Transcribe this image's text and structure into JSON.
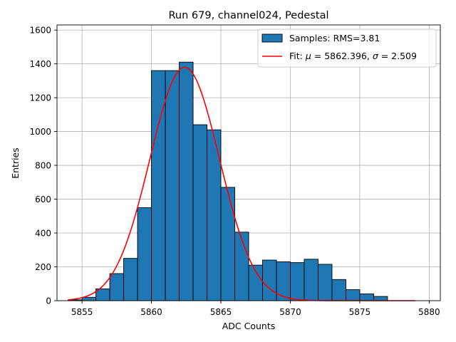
{
  "chart_data": {
    "type": "bar",
    "title": "Run 679, channel024, Pedestal",
    "xlabel": "ADC Counts",
    "ylabel": "Entries",
    "xlim": [
      5853.2,
      5880.8
    ],
    "ylim": [
      0,
      1630
    ],
    "grid": true,
    "legend_position": "top-right",
    "x_ticks": [
      5855,
      5860,
      5865,
      5870,
      5875,
      5880
    ],
    "x_tick_labels": [
      "5855",
      "5860",
      "5865",
      "5870",
      "5875",
      "5880"
    ],
    "y_ticks": [
      0,
      200,
      400,
      600,
      800,
      1000,
      1200,
      1400,
      1600
    ],
    "y_tick_labels": [
      "0",
      "200",
      "400",
      "600",
      "800",
      "1000",
      "1200",
      "1400",
      "1600"
    ],
    "bin_edges": [
      5854,
      5855,
      5856,
      5857,
      5858,
      5859,
      5860,
      5861,
      5862,
      5863,
      5864,
      5865,
      5866,
      5867,
      5868,
      5869,
      5870,
      5871,
      5872,
      5873,
      5874,
      5875,
      5876,
      5877,
      5878,
      5879
    ],
    "counts": [
      5,
      20,
      70,
      160,
      250,
      550,
      1360,
      1360,
      1410,
      1040,
      1010,
      670,
      405,
      210,
      240,
      230,
      225,
      245,
      215,
      125,
      65,
      40,
      25,
      0,
      0
    ],
    "fit": {
      "mu": 5862.396,
      "sigma": 2.509,
      "amplitude": 1380,
      "x_range": [
        5854,
        5879
      ]
    },
    "series": [
      {
        "name": "Samples: RMS=3.81",
        "kind": "histogram",
        "color": "#1f77b4"
      },
      {
        "name_prefix": "Fit: ",
        "name_rest": " = 5862.396, ",
        "name_tail": " = 2.509",
        "kind": "line",
        "color": "#ff0000"
      }
    ]
  }
}
